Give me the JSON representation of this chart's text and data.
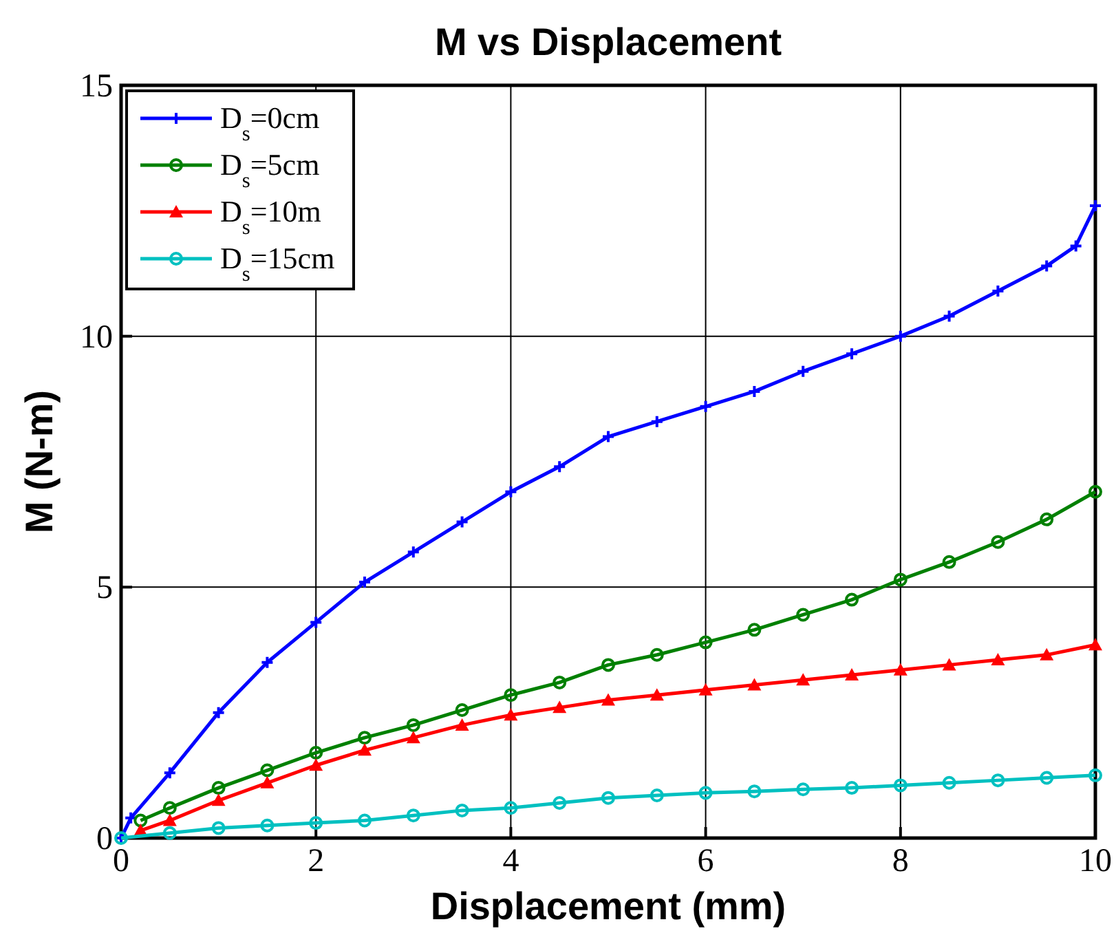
{
  "chart_data": {
    "type": "line",
    "title": "M vs Displacement",
    "xlabel": "Displacement (mm)",
    "ylabel": "M (N-m)",
    "xlim": [
      0,
      10
    ],
    "ylim": [
      0,
      15
    ],
    "xticks": [
      0,
      2,
      4,
      6,
      8,
      10
    ],
    "yticks": [
      0,
      5,
      10,
      15
    ],
    "grid": true,
    "legend": "top left",
    "line_style": "solid",
    "series": [
      {
        "name": "D$_{s}$=0cm",
        "color": "#0000ff",
        "marker": "cross",
        "x": [
          0,
          0.1,
          0.5,
          1,
          1.5,
          2,
          2.5,
          3,
          3.5,
          4,
          4.5,
          5,
          5.5,
          6,
          6.5,
          7,
          7.5,
          8,
          8.5,
          9,
          9.5,
          9.8,
          10
        ],
        "values": [
          0,
          0.4,
          1.3,
          2.5,
          3.5,
          4.3,
          5.1,
          5.7,
          6.3,
          6.9,
          7.4,
          8.0,
          8.3,
          8.6,
          8.9,
          9.3,
          9.65,
          10.0,
          10.4,
          10.9,
          11.4,
          11.8,
          12.6
        ]
      },
      {
        "name": "D$_{s}$=5cm",
        "color": "#008000",
        "marker": "circle",
        "x": [
          0.2,
          0.5,
          1,
          1.5,
          2,
          2.5,
          3,
          3.5,
          4,
          4.5,
          5,
          5.5,
          6,
          6.5,
          7,
          7.5,
          8,
          8.5,
          9,
          9.5,
          10
        ],
        "values": [
          0.35,
          0.6,
          1.0,
          1.35,
          1.7,
          2.0,
          2.25,
          2.55,
          2.85,
          3.1,
          3.45,
          3.65,
          3.9,
          4.15,
          4.45,
          4.75,
          5.15,
          5.5,
          5.9,
          6.35,
          6.9
        ]
      },
      {
        "name": "D$_{s}$=10m",
        "color": "#ff0000",
        "marker": "triangle",
        "x": [
          0.2,
          0.5,
          1,
          1.5,
          2,
          2.5,
          3,
          3.5,
          4,
          4.5,
          5,
          5.5,
          6,
          6.5,
          7,
          7.5,
          8,
          8.5,
          9,
          9.5,
          10
        ],
        "values": [
          0.15,
          0.35,
          0.75,
          1.1,
          1.45,
          1.75,
          2.0,
          2.25,
          2.45,
          2.6,
          2.75,
          2.85,
          2.95,
          3.05,
          3.15,
          3.25,
          3.35,
          3.45,
          3.55,
          3.65,
          3.85
        ]
      },
      {
        "name": "D$_{s}$=15cm",
        "color": "#00c0c0",
        "marker": "circle",
        "x": [
          0,
          0.5,
          1,
          1.5,
          2,
          2.5,
          3,
          3.5,
          4,
          4.5,
          5,
          5.5,
          6,
          6.5,
          7,
          7.5,
          8,
          8.5,
          9,
          9.5,
          10
        ],
        "values": [
          0,
          0.1,
          0.2,
          0.25,
          0.3,
          0.35,
          0.45,
          0.55,
          0.6,
          0.7,
          0.8,
          0.85,
          0.9,
          0.93,
          0.97,
          1.0,
          1.05,
          1.1,
          1.15,
          1.2,
          1.25
        ]
      }
    ]
  }
}
